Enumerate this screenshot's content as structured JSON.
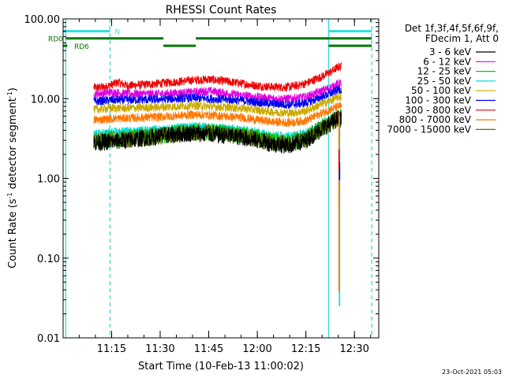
{
  "chart_data": {
    "type": "line",
    "title": "RHESSI Count Rates",
    "xlabel": "Start Time (10-Feb-13 11:00:02)",
    "ylabel_parts": [
      "Count Rate (s",
      "-1",
      " detector segment",
      "-1",
      ")"
    ],
    "y_scale": "log",
    "ylim": [
      0.01,
      100
    ],
    "xlim": [
      "11:00:02",
      "12:37:30"
    ],
    "y_ticks": [
      {
        "value": 100,
        "label": "100.00"
      },
      {
        "value": 10,
        "label": "10.00"
      },
      {
        "value": 1,
        "label": "1.00"
      },
      {
        "value": 0.1,
        "label": "0.10"
      },
      {
        "value": 0.01,
        "label": "0.01"
      }
    ],
    "x_ticks": [
      {
        "value": "11:15",
        "label": "11:15"
      },
      {
        "value": "11:30",
        "label": "11:30"
      },
      {
        "value": "11:45",
        "label": "11:45"
      },
      {
        "value": "12:00",
        "label": "12:00"
      },
      {
        "value": "12:15",
        "label": "12:15"
      },
      {
        "value": "12:30",
        "label": "12:30"
      }
    ],
    "legend_title": [
      "Det 1f,3f,4f,5f,6f,9f,",
      "FDecim 1, Att 0"
    ],
    "legend_position": "right",
    "data_start": "11:09:30",
    "data_end": "12:26:00",
    "series": [
      {
        "name": "3 - 6 keV",
        "color": "#000000",
        "values": [
          [
            "11:10",
            2.8
          ],
          [
            "11:15",
            2.9
          ],
          [
            "11:20",
            3.0
          ],
          [
            "11:30",
            3.4
          ],
          [
            "11:40",
            3.7
          ],
          [
            "11:45",
            3.6
          ],
          [
            "11:55",
            3.3
          ],
          [
            "12:00",
            3.0
          ],
          [
            "12:05",
            2.7
          ],
          [
            "12:10",
            2.6
          ],
          [
            "12:15",
            3.0
          ],
          [
            "12:20",
            4.2
          ],
          [
            "12:23",
            5.0
          ],
          [
            "12:25",
            5.6
          ]
        ]
      },
      {
        "name": "6 - 12 keV",
        "color": "#dd00dd",
        "values": [
          [
            "11:10",
            11.5
          ],
          [
            "11:15",
            12.0
          ],
          [
            "11:20",
            11.5
          ],
          [
            "11:30",
            11.5
          ],
          [
            "11:40",
            12.0
          ],
          [
            "11:45",
            12.5
          ],
          [
            "11:55",
            11.0
          ],
          [
            "12:00",
            10.5
          ],
          [
            "12:05",
            10.0
          ],
          [
            "12:10",
            10.0
          ],
          [
            "12:15",
            10.5
          ],
          [
            "12:20",
            12.5
          ],
          [
            "12:23",
            14.0
          ],
          [
            "12:25",
            15.5
          ]
        ]
      },
      {
        "name": "12 - 25 keV",
        "color": "#00cc00",
        "values": [
          [
            "11:10",
            3.0
          ],
          [
            "11:15",
            3.1
          ],
          [
            "11:20",
            3.2
          ],
          [
            "11:30",
            3.5
          ],
          [
            "11:40",
            3.9
          ],
          [
            "11:45",
            3.8
          ],
          [
            "11:55",
            3.5
          ],
          [
            "12:00",
            3.2
          ],
          [
            "12:05",
            2.9
          ],
          [
            "12:10",
            2.8
          ],
          [
            "12:15",
            3.2
          ],
          [
            "12:20",
            4.4
          ],
          [
            "12:23",
            5.2
          ],
          [
            "12:25",
            5.8
          ]
        ]
      },
      {
        "name": "25 - 50 keV",
        "color": "#00dddd",
        "values": [
          [
            "11:10",
            3.6
          ],
          [
            "11:15",
            3.8
          ],
          [
            "11:20",
            3.9
          ],
          [
            "11:30",
            4.1
          ],
          [
            "11:40",
            4.5
          ],
          [
            "11:45",
            4.4
          ],
          [
            "11:55",
            4.1
          ],
          [
            "12:00",
            3.8
          ],
          [
            "12:05",
            3.5
          ],
          [
            "12:10",
            3.4
          ],
          [
            "12:15",
            3.7
          ],
          [
            "12:20",
            4.9
          ],
          [
            "12:23",
            5.6
          ],
          [
            "12:25",
            6.2
          ]
        ]
      },
      {
        "name": "50 - 100 keV",
        "color": "#ccaa00",
        "values": [
          [
            "11:10",
            7.3
          ],
          [
            "11:15",
            7.6
          ],
          [
            "11:20",
            7.6
          ],
          [
            "11:30",
            7.8
          ],
          [
            "11:40",
            8.2
          ],
          [
            "11:45",
            8.0
          ],
          [
            "11:55",
            7.6
          ],
          [
            "12:00",
            7.2
          ],
          [
            "12:05",
            6.8
          ],
          [
            "12:10",
            6.6
          ],
          [
            "12:15",
            7.0
          ],
          [
            "12:20",
            8.6
          ],
          [
            "12:23",
            9.6
          ],
          [
            "12:25",
            10.5
          ]
        ]
      },
      {
        "name": "100 - 300 keV",
        "color": "#0000ee",
        "values": [
          [
            "11:10",
            9.2
          ],
          [
            "11:15",
            9.6
          ],
          [
            "11:20",
            9.6
          ],
          [
            "11:30",
            9.8
          ],
          [
            "11:40",
            10.2
          ],
          [
            "11:45",
            10.0
          ],
          [
            "11:55",
            9.5
          ],
          [
            "12:00",
            9.0
          ],
          [
            "12:05",
            8.6
          ],
          [
            "12:10",
            8.4
          ],
          [
            "12:15",
            8.8
          ],
          [
            "12:20",
            10.5
          ],
          [
            "12:23",
            11.8
          ],
          [
            "12:25",
            13.0
          ]
        ]
      },
      {
        "name": "300 - 800 keV",
        "color": "#ee0000",
        "values": [
          [
            "11:10",
            13.8
          ],
          [
            "11:13",
            14.0
          ],
          [
            "11:17",
            16.0
          ],
          [
            "11:20",
            14.5
          ],
          [
            "11:30",
            15.5
          ],
          [
            "11:40",
            17.0
          ],
          [
            "11:45",
            17.5
          ],
          [
            "11:50",
            16.5
          ],
          [
            "11:55",
            15.5
          ],
          [
            "12:00",
            14.5
          ],
          [
            "12:05",
            14.0
          ],
          [
            "12:10",
            14.0
          ],
          [
            "12:15",
            15.5
          ],
          [
            "12:20",
            19.0
          ],
          [
            "12:23",
            22.0
          ],
          [
            "12:25",
            25.0
          ]
        ]
      },
      {
        "name": "800 - 7000 keV",
        "color": "#ff7700",
        "values": [
          [
            "11:10",
            5.4
          ],
          [
            "11:15",
            5.6
          ],
          [
            "11:20",
            5.7
          ],
          [
            "11:30",
            5.9
          ],
          [
            "11:40",
            6.3
          ],
          [
            "11:45",
            6.2
          ],
          [
            "11:55",
            5.8
          ],
          [
            "12:00",
            5.4
          ],
          [
            "12:05",
            5.1
          ],
          [
            "12:10",
            5.0
          ],
          [
            "12:15",
            5.3
          ],
          [
            "12:20",
            6.6
          ],
          [
            "12:23",
            7.4
          ],
          [
            "12:25",
            8.0
          ]
        ]
      },
      {
        "name": "7000 - 15000 keV",
        "color": "#557700",
        "values": [
          [
            "11:10",
            2.9
          ],
          [
            "11:15",
            3.0
          ],
          [
            "11:20",
            3.1
          ],
          [
            "11:30",
            3.4
          ],
          [
            "11:40",
            3.8
          ],
          [
            "11:45",
            3.7
          ],
          [
            "11:55",
            3.4
          ],
          [
            "12:00",
            3.1
          ],
          [
            "12:05",
            2.8
          ],
          [
            "12:10",
            2.7
          ],
          [
            "12:15",
            3.1
          ],
          [
            "12:20",
            4.3
          ],
          [
            "12:23",
            5.1
          ],
          [
            "12:25",
            5.7
          ]
        ]
      }
    ],
    "vertical_markers": [
      {
        "time": "11:00:50",
        "style": "solid",
        "color": "#33dddd"
      },
      {
        "time": "11:14:30",
        "style": "dashed",
        "color": "#33dddd"
      },
      {
        "time": "12:22:00",
        "style": "solid",
        "color": "#33dddd"
      },
      {
        "time": "12:35:20",
        "style": "dashed",
        "color": "#33dddd"
      }
    ],
    "flag_bars": [
      {
        "label": "N",
        "color": "#33dddd",
        "y_value": 70,
        "segments": [
          [
            "11:00:00",
            "11:14:30"
          ],
          [
            "12:22:00",
            "12:35:20"
          ]
        ]
      },
      {
        "label": "RD0",
        "color": "#007700",
        "y_value": 57,
        "segments": [
          [
            "11:00:50",
            "11:31:00"
          ],
          [
            "11:41:00",
            "12:22:00"
          ],
          [
            "12:22:00",
            "12:35:20"
          ]
        ]
      },
      {
        "label": "",
        "color": "#007700",
        "y_value": 46,
        "segments": [
          [
            "11:31:00",
            "11:41:00"
          ],
          [
            "12:22:00",
            "12:35:20"
          ]
        ]
      },
      {
        "label": "RD6",
        "color": "#007700",
        "y_value": 46,
        "segments": [
          [
            "11:00:00",
            "11:01:20"
          ]
        ]
      }
    ],
    "dropouts": [
      {
        "time": "12:25:15",
        "name": "12 - 25 keV",
        "color": "#00cc00",
        "from": 5.8,
        "to": 0.45
      },
      {
        "time": "12:25:15",
        "name": "25 - 50 keV",
        "color": "#00dddd",
        "from": 6.0,
        "to": 0.025
      },
      {
        "time": "12:25:15",
        "name": "800 - 7000 keV",
        "color": "#ff7700",
        "from": 7.0,
        "to": 0.038
      },
      {
        "time": "12:25:15",
        "name": "100 - 300 keV",
        "color": "#0000ee",
        "from": 1.6,
        "to": 0.95
      },
      {
        "time": "12:25:15",
        "name": "300 - 800 keV",
        "color": "#ee0000",
        "from": 2.3,
        "to": 1.3
      }
    ],
    "footer_timestamp": "23-Oct-2021 05:03"
  }
}
